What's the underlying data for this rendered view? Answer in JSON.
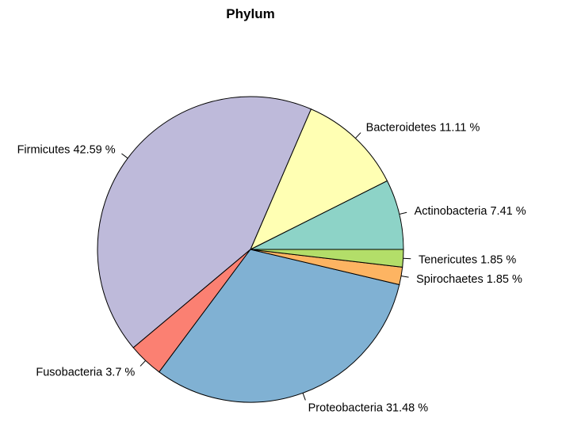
{
  "chart_data": {
    "type": "pie",
    "title": "Phylum",
    "start": "counterclockwise from 0°",
    "slices": [
      {
        "name": "Actinobacteria",
        "value": 7.41,
        "label": "Actinobacteria 7.41 %",
        "color": "#8DD3C7"
      },
      {
        "name": "Bacteroidetes",
        "value": 11.11,
        "label": "Bacteroidetes 11.11 %",
        "color": "#FFFFB3"
      },
      {
        "name": "Firmicutes",
        "value": 42.59,
        "label": "Firmicutes 42.59 %",
        "color": "#BEBADA"
      },
      {
        "name": "Fusobacteria",
        "value": 3.7,
        "label": "Fusobacteria 3.7 %",
        "color": "#FB8072"
      },
      {
        "name": "Proteobacteria",
        "value": 31.48,
        "label": "Proteobacteria 31.48 %",
        "color": "#80B1D3"
      },
      {
        "name": "Spirochaetes",
        "value": 1.85,
        "label": "Spirochaetes 1.85 %",
        "color": "#FDB462"
      },
      {
        "name": "Tenericutes",
        "value": 1.85,
        "label": "Tenericutes 1.85 %",
        "color": "#B3DE69"
      }
    ]
  }
}
